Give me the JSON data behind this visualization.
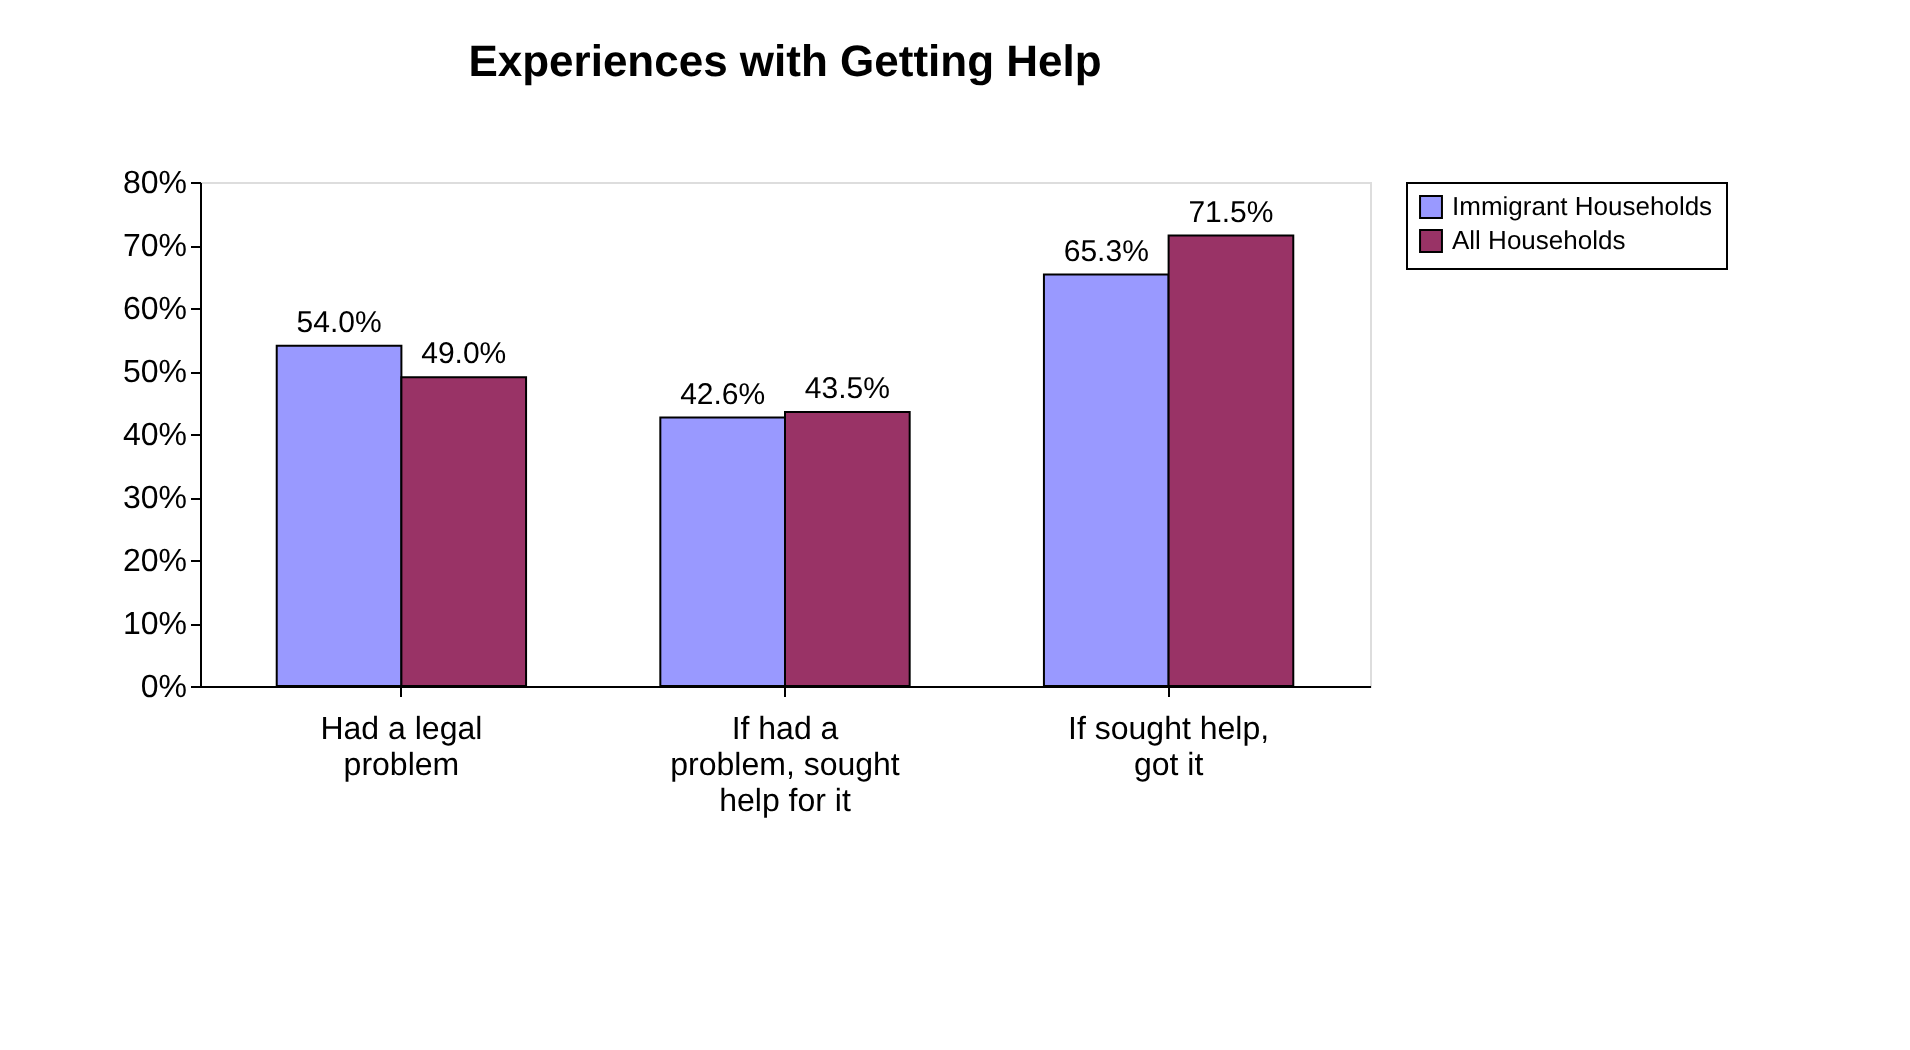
{
  "chart_data": {
    "type": "bar",
    "title": "Experiences with Getting Help",
    "categories": [
      "Had a legal problem",
      "If had a problem, sought help for it",
      "If sought help, got it"
    ],
    "series": [
      {
        "name": "Immigrant Households",
        "color": "#9999ff",
        "values": [
          54.0,
          42.6,
          65.3
        ],
        "value_labels": [
          "54.0%",
          "42.6%",
          "65.3%"
        ]
      },
      {
        "name": "All Households",
        "color": "#993366",
        "values": [
          49.0,
          43.5,
          71.5
        ],
        "value_labels": [
          "49.0%",
          "43.5%",
          "71.5%"
        ]
      }
    ],
    "ylim": [
      0,
      80
    ],
    "yticks": [
      {
        "value": 0,
        "label": "0%"
      },
      {
        "value": 10,
        "label": "10%"
      },
      {
        "value": 20,
        "label": "20%"
      },
      {
        "value": 30,
        "label": "30%"
      },
      {
        "value": 40,
        "label": "40%"
      },
      {
        "value": 50,
        "label": "50%"
      },
      {
        "value": 60,
        "label": "60%"
      },
      {
        "value": 70,
        "label": "70%"
      },
      {
        "value": 80,
        "label": "80%"
      }
    ],
    "grid": false,
    "legend": "right"
  }
}
